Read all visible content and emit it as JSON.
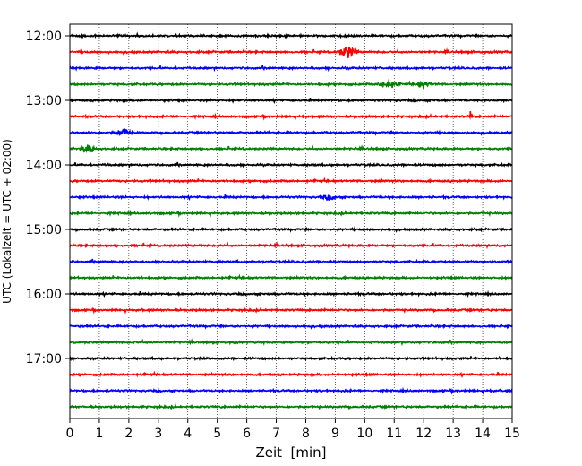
{
  "chart_data": {
    "type": "line",
    "title": "",
    "xlabel": "Zeit  [min]",
    "ylabel": "UTC (Lokalzeit = UTC + 02:00)",
    "xlim": [
      0,
      15
    ],
    "x_ticks": [
      "0",
      "1",
      "2",
      "3",
      "4",
      "5",
      "6",
      "7",
      "8",
      "9",
      "10",
      "11",
      "12",
      "13",
      "14",
      "15"
    ],
    "y_tick_labels": [
      "12:00",
      "13:00",
      "14:00",
      "15:00",
      "16:00",
      "17:00"
    ],
    "grid": "vertical dotted lines at every minute",
    "trace_start_times": [
      "12:00",
      "12:15",
      "12:30",
      "12:45",
      "13:00",
      "13:15",
      "13:30",
      "13:45",
      "14:00",
      "14:15",
      "14:30",
      "14:45",
      "15:00",
      "15:15",
      "15:30",
      "15:45",
      "16:00",
      "16:15",
      "16:30",
      "16:45",
      "17:00",
      "17:15",
      "17:30",
      "17:45"
    ],
    "trace_colors": [
      "#000000",
      "#ff0000",
      "#0000ff",
      "#008000"
    ],
    "events": [
      {
        "trace": "12:15",
        "minute": 9.4,
        "amplitude": "large"
      },
      {
        "trace": "12:45",
        "minute": 10.8,
        "amplitude": "medium"
      },
      {
        "trace": "12:45",
        "minute": 12.0,
        "amplitude": "small"
      },
      {
        "trace": "13:15",
        "minute": 13.6,
        "amplitude": "spike"
      },
      {
        "trace": "13:30",
        "minute": 1.8,
        "amplitude": "medium"
      },
      {
        "trace": "13:45",
        "minute": 0.6,
        "amplitude": "medium"
      },
      {
        "trace": "14:30",
        "minute": 8.8,
        "amplitude": "small"
      }
    ]
  }
}
